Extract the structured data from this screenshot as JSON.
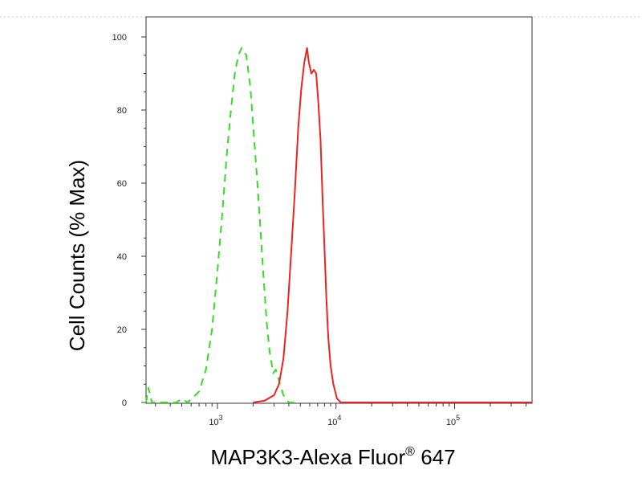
{
  "chart_data": {
    "type": "line",
    "title": "",
    "xlabel": "MAP3K3-Alexa Fluor",
    "xlabel_superscript": "®",
    "xlabel_suffix": " 647",
    "ylabel": "Cell Counts (% Max)",
    "x_scale": "log",
    "xlim": [
      250,
      450000
    ],
    "ylim": [
      0,
      105
    ],
    "yticks": [
      {
        "value": 0,
        "label": "0"
      },
      {
        "value": 20,
        "label": "20"
      },
      {
        "value": 40,
        "label": "40"
      },
      {
        "value": 60,
        "label": "60"
      },
      {
        "value": 80,
        "label": "80"
      },
      {
        "value": 100,
        "label": "100"
      }
    ],
    "xticks": [
      {
        "value": 1000,
        "base": "10",
        "exp": "3"
      },
      {
        "value": 10000,
        "base": "10",
        "exp": "4"
      },
      {
        "value": 100000,
        "base": "10",
        "exp": "5"
      }
    ],
    "grid": false,
    "legend": "none",
    "series": [
      {
        "color": "#33dd22",
        "style": "dashed",
        "points": [
          [
            250,
            0
          ],
          [
            262,
            4
          ],
          [
            280,
            0
          ],
          [
            450,
            0
          ],
          [
            500,
            1
          ],
          [
            560,
            0
          ],
          [
            700,
            3
          ],
          [
            800,
            9
          ],
          [
            900,
            20
          ],
          [
            1000,
            36
          ],
          [
            1100,
            52
          ],
          [
            1200,
            68
          ],
          [
            1300,
            80
          ],
          [
            1400,
            90
          ],
          [
            1500,
            95
          ],
          [
            1600,
            97
          ],
          [
            1750,
            95
          ],
          [
            1900,
            86
          ],
          [
            2000,
            76
          ],
          [
            2150,
            62
          ],
          [
            2300,
            48
          ],
          [
            2450,
            34
          ],
          [
            2600,
            22
          ],
          [
            2750,
            14
          ],
          [
            2950,
            8
          ],
          [
            3100,
            9
          ],
          [
            3300,
            6
          ],
          [
            3600,
            2
          ],
          [
            4000,
            0
          ],
          [
            4500,
            0
          ]
        ]
      },
      {
        "color": "#ee2222",
        "style": "solid",
        "points": [
          [
            2000,
            0
          ],
          [
            2500,
            0.5
          ],
          [
            3000,
            2
          ],
          [
            3300,
            5
          ],
          [
            3600,
            12
          ],
          [
            3900,
            25
          ],
          [
            4200,
            42
          ],
          [
            4500,
            58
          ],
          [
            4800,
            75
          ],
          [
            5100,
            86
          ],
          [
            5400,
            93
          ],
          [
            5700,
            97
          ],
          [
            5900,
            93
          ],
          [
            6200,
            90
          ],
          [
            6500,
            91
          ],
          [
            6800,
            90
          ],
          [
            7100,
            82
          ],
          [
            7400,
            72
          ],
          [
            7700,
            56
          ],
          [
            8000,
            42
          ],
          [
            8300,
            28
          ],
          [
            8600,
            18
          ],
          [
            9000,
            10
          ],
          [
            9500,
            5
          ],
          [
            10200,
            1
          ],
          [
            11000,
            0
          ],
          [
            20000,
            0
          ],
          [
            100000,
            0
          ],
          [
            450000,
            0
          ]
        ]
      }
    ]
  }
}
